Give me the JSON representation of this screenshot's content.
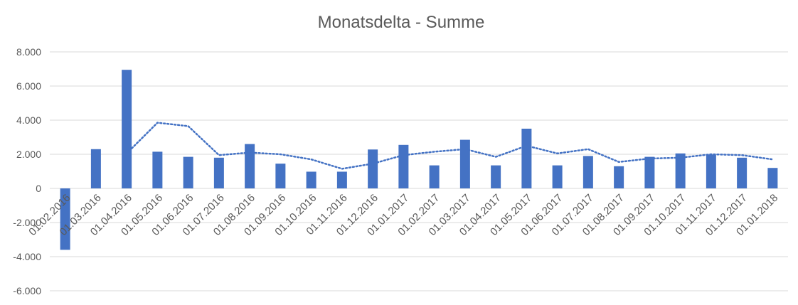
{
  "chart_data": {
    "type": "bar",
    "title": "Monatsdelta - Summe",
    "xlabel": "",
    "ylabel": "",
    "ylim": [
      -6000,
      8000
    ],
    "yticks": [
      8000,
      6000,
      4000,
      2000,
      0,
      -2000,
      -4000,
      -6000
    ],
    "ytick_labels": [
      "8.000",
      "6.000",
      "4.000",
      "2.000",
      "0",
      "-2.000",
      "-4.000",
      "-6.000"
    ],
    "grid": true,
    "legend": "none",
    "colors": {
      "bar": "#4472C4",
      "trend": "#4472C4",
      "grid": "#D9D9D9",
      "text": "#595959"
    },
    "categories": [
      "01.02.2016",
      "01.03.2016",
      "01.04.2016",
      "01.05.2016",
      "01.06.2016",
      "01.07.2016",
      "01.08.2016",
      "01.09.2016",
      "01.10.2016",
      "01.11.2016",
      "01.12.2016",
      "01.01.2017",
      "01.02.2017",
      "01.03.2017",
      "01.04.2017",
      "01.05.2017",
      "01.06.2017",
      "01.07.2017",
      "01.08.2017",
      "01.09.2017",
      "01.10.2017",
      "01.11.2017",
      "01.12.2017",
      "01.01.2018"
    ],
    "values": [
      -3600,
      2300,
      6950,
      2150,
      1850,
      1800,
      2600,
      1450,
      980,
      980,
      2280,
      2550,
      1350,
      2850,
      1350,
      3500,
      1350,
      1900,
      1300,
      1850,
      2050,
      1980,
      1800,
      1200
    ],
    "trendline": {
      "style": "dotted",
      "start_index": 2,
      "values": [
        null,
        null,
        2050,
        3850,
        3650,
        1950,
        2100,
        2000,
        1700,
        1150,
        1450,
        1950,
        2150,
        2300,
        1850,
        2500,
        2050,
        2300,
        1550,
        1750,
        1800,
        2000,
        1950,
        1700
      ]
    }
  }
}
